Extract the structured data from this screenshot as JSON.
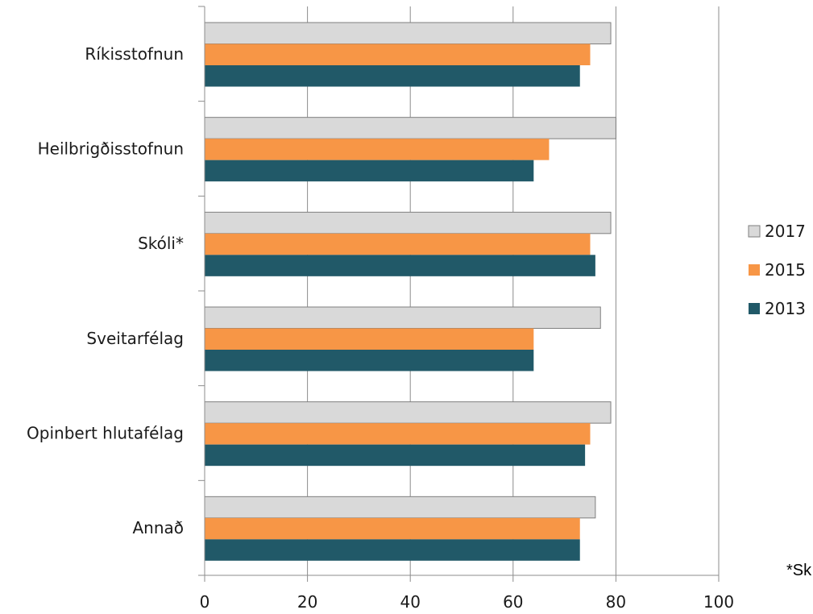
{
  "chart_data": {
    "type": "bar",
    "orientation": "horizontal",
    "categories": [
      "Ríkisstofnun",
      "Heilbrigðisstofnun",
      "Skóli*",
      "Sveitarfélag",
      "Opinbert hlutafélag",
      "Annað"
    ],
    "series": [
      {
        "name": "2017",
        "color": "#d9d9d9",
        "values": [
          79,
          80,
          79,
          77,
          79,
          76
        ]
      },
      {
        "name": "2015",
        "color": "#f79646",
        "values": [
          75,
          67,
          75,
          64,
          75,
          73
        ]
      },
      {
        "name": "2013",
        "color": "#215968",
        "values": [
          73,
          64,
          76,
          64,
          74,
          73
        ]
      }
    ],
    "xlim": [
      0,
      100
    ],
    "xticks": [
      0,
      20,
      40,
      60,
      80,
      100
    ],
    "title": "",
    "xlabel": "",
    "ylabel": "",
    "grid": true,
    "legend_position": "right",
    "legend_order": [
      "2017",
      "2015",
      "2013"
    ]
  },
  "footnote": "*Sk"
}
